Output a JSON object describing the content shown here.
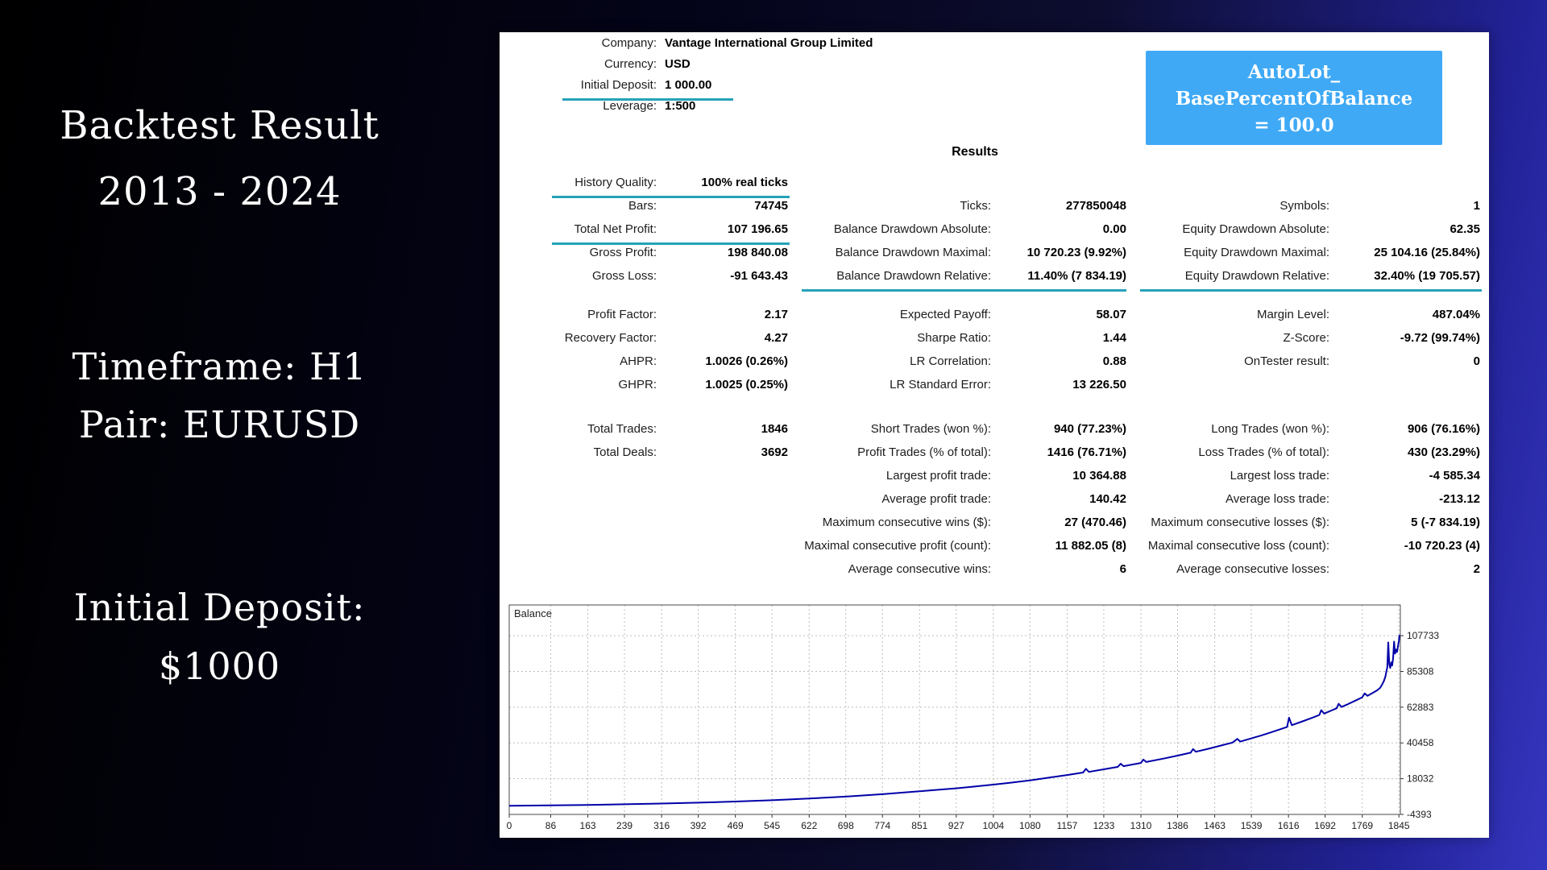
{
  "theme": {
    "underline_color": "#25a2b8",
    "param_box_bg": "#3fa9f5",
    "curve_color": "#0000a8"
  },
  "left_panel": {
    "title_line1": "Backtest Result",
    "title_line2": "2013 - 2024",
    "timeframe": "Timeframe: H1",
    "pair": "Pair: EURUSD",
    "deposit_line1": "Initial Deposit:",
    "deposit_line2": "$1000"
  },
  "report": {
    "header": [
      {
        "label": "Company:",
        "value": "Vantage International Group Limited"
      },
      {
        "label": "Currency:",
        "value": "USD"
      },
      {
        "label": "Initial Deposit:",
        "value": "1 000.00",
        "underline": true
      },
      {
        "label": "Leverage:",
        "value": "1:500"
      }
    ],
    "param_box": {
      "line1": "AutoLot_",
      "line2": "BasePercentOfBalance",
      "line3": "= 100.0"
    },
    "results_title": "Results",
    "stat_blocks": [
      [
        [
          {
            "label": "History Quality:",
            "value": "100% real ticks",
            "underline": true
          },
          null,
          null
        ],
        [
          {
            "label": "Bars:",
            "value": "74745"
          },
          {
            "label": "Ticks:",
            "value": "277850048"
          },
          {
            "label": "Symbols:",
            "value": "1"
          }
        ],
        [
          {
            "label": "Total Net Profit:",
            "value": "107 196.65",
            "underline": true
          },
          {
            "label": "Balance Drawdown Absolute:",
            "value": "0.00"
          },
          {
            "label": "Equity Drawdown Absolute:",
            "value": "62.35"
          }
        ],
        [
          {
            "label": "Gross Profit:",
            "value": "198 840.08"
          },
          {
            "label": "Balance Drawdown Maximal:",
            "value": "10 720.23 (9.92%)"
          },
          {
            "label": "Equity Drawdown Maximal:",
            "value": "25 104.16 (25.84%)"
          }
        ],
        [
          {
            "label": "Gross Loss:",
            "value": "-91 643.43"
          },
          {
            "label": "Balance Drawdown Relative:",
            "value": "11.40% (7 834.19)",
            "underline": true
          },
          {
            "label": "Equity Drawdown Relative:",
            "value": "32.40% (19 705.57)",
            "underline": true
          }
        ]
      ],
      [
        [
          {
            "label": "Profit Factor:",
            "value": "2.17"
          },
          {
            "label": "Expected Payoff:",
            "value": "58.07"
          },
          {
            "label": "Margin Level:",
            "value": "487.04%"
          }
        ],
        [
          {
            "label": "Recovery Factor:",
            "value": "4.27"
          },
          {
            "label": "Sharpe Ratio:",
            "value": "1.44"
          },
          {
            "label": "Z-Score:",
            "value": "-9.72 (99.74%)"
          }
        ],
        [
          {
            "label": "AHPR:",
            "value": "1.0026 (0.26%)"
          },
          {
            "label": "LR Correlation:",
            "value": "0.88"
          },
          {
            "label": "OnTester result:",
            "value": "0"
          }
        ],
        [
          {
            "label": "GHPR:",
            "value": "1.0025 (0.25%)"
          },
          {
            "label": "LR Standard Error:",
            "value": "13 226.50"
          },
          null
        ]
      ],
      [
        [
          {
            "label": "Total Trades:",
            "value": "1846"
          },
          {
            "label": "Short Trades (won %):",
            "value": "940 (77.23%)"
          },
          {
            "label": "Long Trades (won %):",
            "value": "906 (76.16%)"
          }
        ],
        [
          {
            "label": "Total Deals:",
            "value": "3692"
          },
          {
            "label": "Profit Trades (% of total):",
            "value": "1416 (76.71%)"
          },
          {
            "label": "Loss Trades (% of total):",
            "value": "430 (23.29%)"
          }
        ],
        [
          null,
          {
            "label": "Largest profit trade:",
            "value": "10 364.88"
          },
          {
            "label": "Largest loss trade:",
            "value": "-4 585.34"
          }
        ],
        [
          null,
          {
            "label": "Average profit trade:",
            "value": "140.42"
          },
          {
            "label": "Average loss trade:",
            "value": "-213.12"
          }
        ],
        [
          null,
          {
            "label": "Maximum consecutive wins ($):",
            "value": "27 (470.46)"
          },
          {
            "label": "Maximum consecutive losses ($):",
            "value": "5 (-7 834.19)"
          }
        ],
        [
          null,
          {
            "label": "Maximal consecutive profit (count):",
            "value": "11 882.05 (8)"
          },
          {
            "label": "Maximal consecutive loss (count):",
            "value": "-10 720.23 (4)"
          }
        ],
        [
          null,
          {
            "label": "Average consecutive wins:",
            "value": "6"
          },
          {
            "label": "Average consecutive losses:",
            "value": "2"
          }
        ]
      ]
    ]
  },
  "chart_data": {
    "type": "line",
    "title": "Balance",
    "x_range": [
      0,
      1848
    ],
    "y_range": [
      -4393,
      127000
    ],
    "x_ticks": [
      0,
      86,
      163,
      239,
      316,
      392,
      469,
      545,
      622,
      698,
      774,
      851,
      927,
      1004,
      1080,
      1157,
      1233,
      1310,
      1386,
      1463,
      1539,
      1616,
      1692,
      1769,
      1845
    ],
    "y_ticks": [
      107733,
      85308,
      62883,
      40458,
      18032,
      -4393
    ],
    "grid": "dashed",
    "legend_position": "none",
    "xlabel": "",
    "ylabel": "",
    "series": [
      {
        "name": "Balance",
        "color": "#0000a8",
        "points": [
          [
            0,
            1000
          ],
          [
            86,
            1260
          ],
          [
            163,
            1580
          ],
          [
            239,
            1950
          ],
          [
            316,
            2420
          ],
          [
            392,
            2980
          ],
          [
            469,
            3680
          ],
          [
            545,
            4520
          ],
          [
            622,
            5560
          ],
          [
            698,
            6800
          ],
          [
            774,
            8300
          ],
          [
            851,
            10100
          ],
          [
            900,
            11300
          ],
          [
            927,
            12000
          ],
          [
            965,
            13100
          ],
          [
            1004,
            14300
          ],
          [
            1040,
            15500
          ],
          [
            1080,
            17000
          ],
          [
            1120,
            18700
          ],
          [
            1157,
            20300
          ],
          [
            1190,
            21900
          ],
          [
            1196,
            24200
          ],
          [
            1202,
            22300
          ],
          [
            1233,
            23900
          ],
          [
            1262,
            25400
          ],
          [
            1268,
            27400
          ],
          [
            1274,
            25900
          ],
          [
            1310,
            27900
          ],
          [
            1315,
            30000
          ],
          [
            1321,
            28500
          ],
          [
            1356,
            30600
          ],
          [
            1386,
            32500
          ],
          [
            1413,
            34300
          ],
          [
            1418,
            36600
          ],
          [
            1424,
            34900
          ],
          [
            1450,
            36800
          ],
          [
            1480,
            39100
          ],
          [
            1500,
            40700
          ],
          [
            1510,
            43000
          ],
          [
            1516,
            41300
          ],
          [
            1539,
            43300
          ],
          [
            1560,
            45200
          ],
          [
            1580,
            47100
          ],
          [
            1600,
            49100
          ],
          [
            1613,
            50500
          ],
          [
            1617,
            56300
          ],
          [
            1623,
            51600
          ],
          [
            1645,
            54000
          ],
          [
            1665,
            56200
          ],
          [
            1680,
            58000
          ],
          [
            1684,
            61000
          ],
          [
            1690,
            58900
          ],
          [
            1705,
            60800
          ],
          [
            1716,
            62200
          ],
          [
            1720,
            65000
          ],
          [
            1726,
            63000
          ],
          [
            1740,
            64900
          ],
          [
            1755,
            67000
          ],
          [
            1769,
            69100
          ],
          [
            1774,
            71500
          ],
          [
            1780,
            70000
          ],
          [
            1790,
            71700
          ],
          [
            1800,
            73500
          ],
          [
            1806,
            75000
          ],
          [
            1810,
            77000
          ],
          [
            1814,
            79500
          ],
          [
            1817,
            82000
          ],
          [
            1819,
            85000
          ],
          [
            1821,
            88000
          ],
          [
            1823,
            103500
          ],
          [
            1825,
            90000
          ],
          [
            1827,
            87500
          ],
          [
            1829,
            91000
          ],
          [
            1831,
            89000
          ],
          [
            1833,
            93500
          ],
          [
            1835,
            104000
          ],
          [
            1837,
            96500
          ],
          [
            1839,
            99000
          ],
          [
            1841,
            97500
          ],
          [
            1843,
            101000
          ],
          [
            1845,
            104500
          ],
          [
            1846,
            108196
          ]
        ]
      }
    ]
  }
}
